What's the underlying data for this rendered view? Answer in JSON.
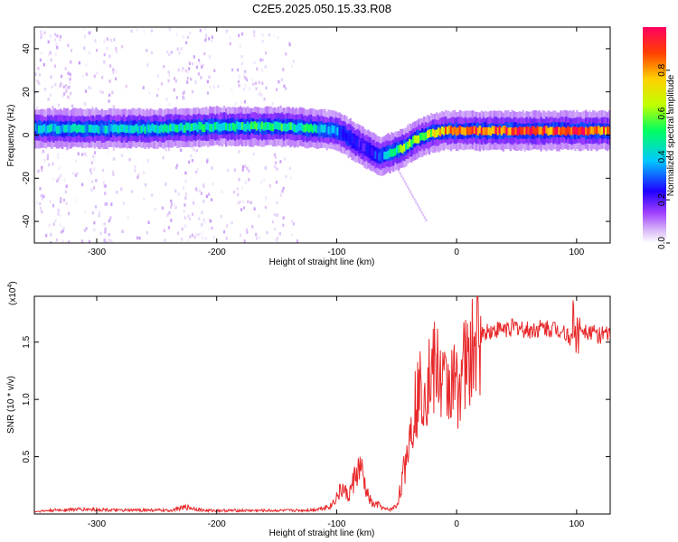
{
  "title": "C2E5.2025.050.15.33.R08",
  "chart_data": [
    {
      "type": "heatmap",
      "xlabel": "Height of straight line (km)",
      "ylabel": "Frequency (Hz)",
      "xlim": [
        -352,
        128
      ],
      "ylim": [
        -50,
        50
      ],
      "xticks": [
        -300,
        -200,
        -100,
        0,
        100
      ],
      "yticks": [
        -40,
        -20,
        0,
        20,
        40
      ],
      "colorbar": {
        "label": "Normalized spectral amplitude",
        "range": [
          0,
          1
        ],
        "ticks": [
          0.0,
          0.2,
          0.4,
          0.6,
          0.8
        ],
        "tick_labels": [
          "0.0",
          "0.2",
          "0.4",
          "0.6",
          "0.8"
        ],
        "colormap": [
          "#ffffff",
          "#d8b8f8",
          "#a040ff",
          "#2000ff",
          "#00c8ff",
          "#00ff60",
          "#c0ff00",
          "#ffd000",
          "#ff4000",
          "#ff0060"
        ]
      },
      "ridge": {
        "x": [
          -352,
          -300,
          -250,
          -200,
          -150,
          -120,
          -100,
          -80,
          -65,
          -55,
          -45,
          -35,
          -20,
          -10,
          0,
          50,
          100,
          128
        ],
        "frequency": [
          3,
          3,
          3,
          4,
          4,
          3,
          2,
          -5,
          -10,
          -8,
          -6,
          -2,
          1,
          2,
          2,
          2,
          2,
          2
        ],
        "amplitude": [
          0.45,
          0.45,
          0.5,
          0.5,
          0.55,
          0.5,
          0.4,
          0.3,
          0.35,
          0.5,
          0.6,
          0.6,
          0.7,
          0.8,
          0.9,
          0.9,
          0.9,
          0.85
        ]
      }
    },
    {
      "type": "line",
      "xlabel": "Height of straight line (km)",
      "ylabel": "SNR (10 * v/v)",
      "yscale_note": "(x10",
      "yscale_exp": "4",
      "xlim": [
        -352,
        128
      ],
      "ylim": [
        0,
        19000
      ],
      "xticks": [
        -300,
        -200,
        -100,
        0,
        100
      ],
      "yticks": [
        5000,
        10000,
        15000
      ],
      "ytick_labels": [
        "0.5",
        "1.0",
        "1.5"
      ],
      "line_color": "#e8282a",
      "series": [
        {
          "x": [
            -352,
            -340,
            -320,
            -300,
            -280,
            -260,
            -240,
            -225,
            -210,
            -180,
            -160,
            -140,
            -120,
            -105,
            -100,
            -95,
            -90,
            -85,
            -80,
            -75,
            -70,
            -65,
            -60,
            -55,
            -50,
            -45,
            -40,
            -35,
            -30,
            -25,
            -20,
            -15,
            -10,
            -5,
            0,
            5,
            10,
            15,
            20,
            25,
            30,
            40,
            50,
            60,
            70,
            80,
            90,
            95,
            100,
            110,
            120,
            128
          ],
          "y": [
            200,
            300,
            400,
            400,
            300,
            350,
            300,
            600,
            300,
            300,
            300,
            300,
            350,
            700,
            1500,
            2200,
            1500,
            3200,
            4000,
            1800,
            800,
            800,
            400,
            400,
            700,
            3000,
            6500,
            9500,
            11000,
            11500,
            12500,
            12500,
            11000,
            11500,
            11000,
            13000,
            13000,
            14500,
            15500,
            16000,
            16000,
            16200,
            16300,
            16000,
            16200,
            16200,
            16000,
            15000,
            16500,
            16000,
            15600,
            15600
          ]
        }
      ]
    }
  ]
}
